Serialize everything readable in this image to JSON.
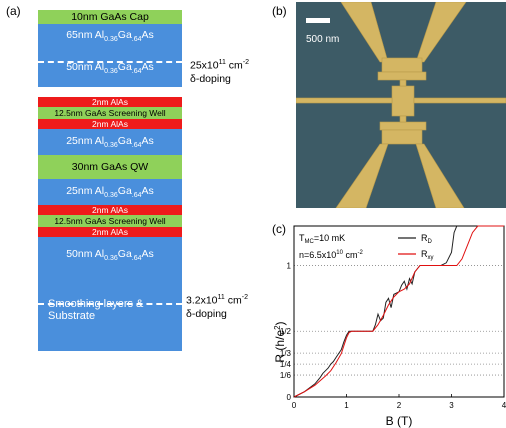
{
  "panel_a": {
    "label": "(a)",
    "layers": [
      {
        "text": "10nm GaAs Cap",
        "kind": "green"
      },
      {
        "text": "65nm Al",
        "sub": "0.36",
        "mid": "Ga",
        "sub2": ".64",
        "tail": "As",
        "kind": "blue"
      },
      {
        "text": "50nm Al",
        "sub": "0.36",
        "mid": "Ga",
        "sub2": ".64",
        "tail": "As",
        "kind": "blue"
      },
      {
        "text": "2nm AlAs",
        "kind": "red"
      },
      {
        "text": "12.5nm GaAs Screening Well",
        "kind": "green"
      },
      {
        "text": "2nm AlAs",
        "kind": "red"
      },
      {
        "text": "25nm Al",
        "sub": "0.36",
        "mid": "Ga",
        "sub2": ".64",
        "tail": "As",
        "kind": "blue"
      },
      {
        "text": "30nm GaAs QW",
        "kind": "green"
      },
      {
        "text": "25nm Al",
        "sub": "0.36",
        "mid": "Ga",
        "sub2": ".64",
        "tail": "As",
        "kind": "blue"
      },
      {
        "text": "2nm AlAs",
        "kind": "red"
      },
      {
        "text": "12.5nm GaAs Screening Well",
        "kind": "green"
      },
      {
        "text": "2nm AlAs",
        "kind": "red"
      },
      {
        "text": "50nm Al",
        "sub": "0.36",
        "mid": "Ga",
        "sub2": ".64",
        "tail": "As",
        "kind": "blue"
      },
      {
        "text": "Smoothing layers &",
        "text2": "Substrate",
        "kind": "blue"
      }
    ],
    "doping_top": {
      "value": "25x10",
      "exp": "11",
      "unit": " cm",
      "unit_exp": "-2",
      "label": "δ-doping"
    },
    "doping_bottom": {
      "value": "3.2x10",
      "exp": "11",
      "unit": " cm",
      "unit_exp": "-2",
      "label": "δ-doping"
    }
  },
  "panel_b": {
    "label": "(b)",
    "scale_bar": "500 nm",
    "colors": {
      "substrate": "#3c5a65",
      "gold": "#d6b866"
    }
  },
  "panel_c": {
    "label": "(c)",
    "annotation_T": "T",
    "annotation_T_sub": "MC",
    "annotation_T_val": "=10 mK",
    "annotation_n": "n=6.5x10",
    "annotation_n_exp": "10",
    "annotation_n_unit": " cm",
    "annotation_n_unit_exp": "-2",
    "legend": [
      {
        "name": "R",
        "sub": "D",
        "color": "#222222"
      },
      {
        "name": "R",
        "sub": "xy",
        "color": "#e01010"
      }
    ],
    "xlabel": "B (T)",
    "ylabel": "R (h/e",
    "ylabel_exp": "2",
    "ylabel_tail": ")",
    "xticks": [
      "0",
      "1",
      "2",
      "3",
      "4"
    ],
    "yticks": [
      "0",
      "1/6",
      "1/4",
      "1/3",
      "1/2",
      "1"
    ]
  },
  "chart_data": {
    "type": "line",
    "xlim": [
      0,
      4
    ],
    "ylim": [
      0,
      1.3
    ],
    "x_tick_values": [
      0,
      1,
      2,
      3,
      4
    ],
    "y_tick_values": [
      0,
      0.1667,
      0.25,
      0.3333,
      0.5,
      1
    ],
    "grid": "dotted horizontal lines at y ticks",
    "series": [
      {
        "name": "R_D",
        "color": "#222222",
        "points": [
          [
            0,
            0.0
          ],
          [
            0.2,
            0.04
          ],
          [
            0.4,
            0.1
          ],
          [
            0.5,
            0.15
          ],
          [
            0.55,
            0.18
          ],
          [
            0.6,
            0.2
          ],
          [
            0.65,
            0.22
          ],
          [
            0.7,
            0.25
          ],
          [
            0.75,
            0.27
          ],
          [
            0.8,
            0.3
          ],
          [
            0.85,
            0.33
          ],
          [
            0.9,
            0.36
          ],
          [
            0.95,
            0.42
          ],
          [
            1.0,
            0.47
          ],
          [
            1.05,
            0.5
          ],
          [
            1.5,
            0.5
          ],
          [
            1.55,
            0.55
          ],
          [
            1.6,
            0.63
          ],
          [
            1.65,
            0.58
          ],
          [
            1.7,
            0.6
          ],
          [
            1.75,
            0.72
          ],
          [
            1.8,
            0.75
          ],
          [
            1.85,
            0.68
          ],
          [
            1.9,
            0.78
          ],
          [
            2.0,
            0.8
          ],
          [
            2.05,
            0.85
          ],
          [
            2.1,
            0.88
          ],
          [
            2.15,
            0.82
          ],
          [
            2.2,
            0.9
          ],
          [
            2.25,
            0.86
          ],
          [
            2.3,
            0.95
          ],
          [
            2.4,
            1.0
          ],
          [
            2.8,
            1.0
          ],
          [
            2.9,
            1.02
          ],
          [
            3.0,
            1.1
          ],
          [
            3.05,
            1.25
          ],
          [
            3.1,
            1.35
          ]
        ]
      },
      {
        "name": "R_xy",
        "color": "#e01010",
        "points": [
          [
            0,
            0.0
          ],
          [
            0.2,
            0.04
          ],
          [
            0.4,
            0.09
          ],
          [
            0.6,
            0.16
          ],
          [
            0.7,
            0.2
          ],
          [
            0.8,
            0.26
          ],
          [
            0.9,
            0.33
          ],
          [
            1.0,
            0.45
          ],
          [
            1.05,
            0.49
          ],
          [
            1.1,
            0.5
          ],
          [
            1.5,
            0.5
          ],
          [
            1.6,
            0.55
          ],
          [
            1.7,
            0.62
          ],
          [
            1.8,
            0.7
          ],
          [
            1.9,
            0.76
          ],
          [
            2.0,
            0.8
          ],
          [
            2.1,
            0.82
          ],
          [
            2.2,
            0.86
          ],
          [
            2.3,
            0.95
          ],
          [
            2.4,
            1.0
          ],
          [
            3.1,
            1.0
          ],
          [
            3.2,
            1.05
          ],
          [
            3.3,
            1.15
          ],
          [
            3.4,
            1.25
          ],
          [
            3.5,
            1.3
          ],
          [
            4.0,
            1.3
          ]
        ]
      }
    ]
  }
}
